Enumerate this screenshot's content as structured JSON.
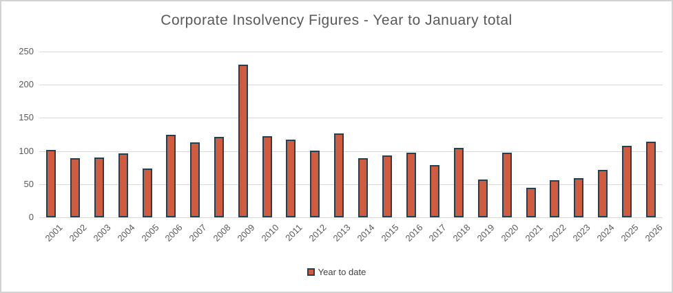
{
  "chart_data": {
    "type": "bar",
    "title": "Corporate Insolvency Figures - Year to January total",
    "categories": [
      "2001",
      "2002",
      "2003",
      "2004",
      "2005",
      "2006",
      "2007",
      "2008",
      "2009",
      "2010",
      "2011",
      "2012",
      "2013",
      "2014",
      "2015",
      "2016",
      "2017",
      "2018",
      "2019",
      "2020",
      "2021",
      "2022",
      "2023",
      "2024",
      "2025",
      "2026"
    ],
    "series": [
      {
        "name": "Year to date",
        "values": [
          102,
          89,
          90,
          96,
          74,
          124,
          113,
          121,
          230,
          122,
          117,
          101,
          127,
          89,
          93,
          98,
          79,
          105,
          57,
          97,
          45,
          56,
          59,
          72,
          108,
          114
        ]
      }
    ],
    "xlabel": "",
    "ylabel": "",
    "ylim": [
      0,
      250
    ],
    "yticks": [
      0,
      50,
      100,
      150,
      200,
      250
    ],
    "grid": true,
    "legend_position": "bottom"
  },
  "colors": {
    "bar_fill": "#d15b3e",
    "bar_border": "#1e4356",
    "grid_line": "#d9d9d9",
    "axis_text": "#595959",
    "title_text": "#595959",
    "legend_text": "#404040",
    "frame_border": "#d3d3d3",
    "background": "#ffffff"
  }
}
